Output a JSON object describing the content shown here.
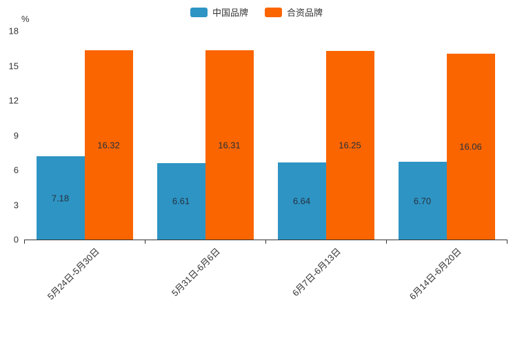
{
  "chart_data": {
    "type": "bar",
    "title": "",
    "unit": "%",
    "categories": [
      "5月24日-5月30日",
      "5月31日-6月6日",
      "6月7日-6月13日",
      "6月14日-6月20日"
    ],
    "series": [
      {
        "name": "中国品牌",
        "color": "#2E94C4",
        "values": [
          7.18,
          6.61,
          6.64,
          6.7
        ],
        "labels": [
          "7.18",
          "6.61",
          "6.64",
          "6.70"
        ]
      },
      {
        "name": "合资品牌",
        "color": "#FB6500",
        "values": [
          16.32,
          16.31,
          16.25,
          16.06
        ],
        "labels": [
          "16.32",
          "16.31",
          "16.25",
          "16.06"
        ]
      }
    ],
    "ylim": [
      0,
      18
    ],
    "ytick_step": 3,
    "legend_position": "top-center",
    "grid": false,
    "value_labels": "inside-center",
    "value_label_color": "#25313f",
    "axis_color": "#333333",
    "xlabel_rotation_deg": 45
  }
}
